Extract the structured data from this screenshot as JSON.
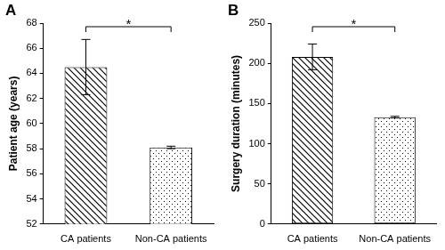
{
  "chart_data": [
    {
      "type": "bar",
      "panel_label": "A",
      "y_label": "Patient age (years)",
      "categories": [
        "CA patients",
        "Non-CA patients"
      ],
      "values": [
        64.5,
        58.1
      ],
      "errors": [
        2.2,
        0.1
      ],
      "color": "#000000",
      "ylim": [
        52,
        68
      ],
      "yticks": [
        52,
        54,
        56,
        58,
        60,
        62,
        64,
        66,
        68
      ],
      "grid": false,
      "annotations": [
        {
          "text": "*",
          "between": [
            "CA patients",
            "Non-CA patients"
          ]
        }
      ]
    },
    {
      "type": "bar",
      "panel_label": "B",
      "y_label": "Surgery duration (minutes)",
      "categories": [
        "CA patients",
        "Non-CA patients"
      ],
      "values": [
        208,
        133
      ],
      "errors": [
        16,
        1
      ],
      "color": "#000000",
      "ylim": [
        0,
        250
      ],
      "yticks": [
        0,
        50,
        100,
        150,
        200,
        250
      ],
      "grid": false,
      "annotations": [
        {
          "text": "*",
          "between": [
            "CA patients",
            "Non-CA patients"
          ]
        }
      ]
    }
  ]
}
